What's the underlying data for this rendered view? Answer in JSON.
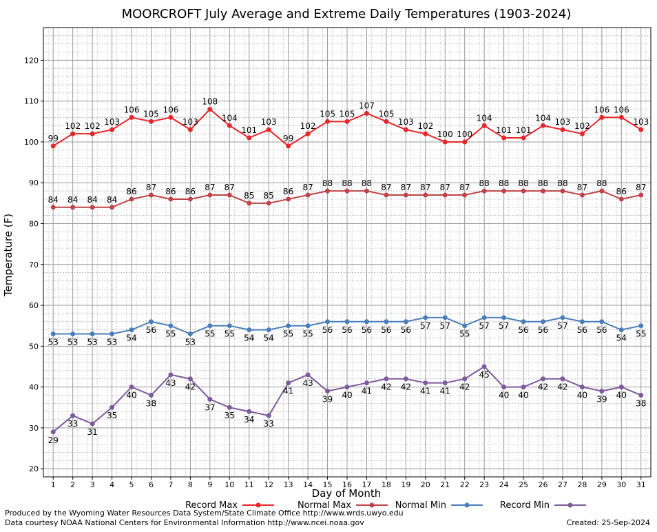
{
  "chart_data": {
    "type": "line",
    "title": "MOORCROFT July Average and Extreme Daily Temperatures (1903-2024)",
    "xlabel": "Day of Month",
    "ylabel": "Temperature (F)",
    "ylim": [
      18,
      128
    ],
    "y_ticks": [
      20,
      30,
      40,
      50,
      60,
      70,
      80,
      90,
      100,
      110,
      120
    ],
    "grid": true,
    "legend_position": "bottom",
    "x": [
      1,
      2,
      3,
      4,
      5,
      6,
      7,
      8,
      9,
      10,
      11,
      12,
      13,
      14,
      15,
      16,
      17,
      18,
      19,
      20,
      21,
      22,
      23,
      24,
      25,
      26,
      27,
      28,
      29,
      30,
      31
    ],
    "series": [
      {
        "name": "Record Max",
        "color": "#e8262a",
        "label_position": "above",
        "values": [
          99,
          102,
          102,
          103,
          106,
          105,
          106,
          103,
          108,
          104,
          101,
          103,
          99,
          102,
          105,
          105,
          107,
          105,
          103,
          102,
          100,
          100,
          104,
          101,
          101,
          104,
          103,
          102,
          106,
          106,
          103
        ]
      },
      {
        "name": "Normal Max",
        "color": "#bf4348",
        "label_position": "above",
        "values": [
          84,
          84,
          84,
          84,
          86,
          87,
          86,
          86,
          87,
          87,
          85,
          85,
          86,
          87,
          88,
          88,
          88,
          87,
          87,
          87,
          87,
          87,
          88,
          88,
          88,
          88,
          88,
          87,
          88,
          86,
          87
        ]
      },
      {
        "name": "Normal Min",
        "color": "#4a7ebb",
        "label_position": "below",
        "values": [
          53,
          53,
          53,
          53,
          54,
          56,
          55,
          53,
          55,
          55,
          54,
          54,
          55,
          55,
          56,
          56,
          56,
          56,
          56,
          57,
          57,
          55,
          57,
          57,
          56,
          56,
          57,
          56,
          56,
          54,
          55
        ]
      },
      {
        "name": "Record Min",
        "color": "#7d5a9c",
        "label_position": "below",
        "values": [
          29,
          33,
          31,
          35,
          40,
          38,
          43,
          42,
          37,
          35,
          34,
          33,
          41,
          43,
          39,
          40,
          41,
          42,
          42,
          41,
          41,
          42,
          45,
          40,
          40,
          42,
          42,
          40,
          39,
          40,
          38
        ]
      }
    ]
  },
  "footer": {
    "produced_by": "Produced by the Wyoming Water Resources Data System/State Climate Office http://www.wrds.uwyo.edu",
    "data_courtesy": "Data courtesy NOAA National Centers for Environmental Information http://www.ncei.noaa.gov",
    "created": "Created:  25-Sep-2024"
  }
}
